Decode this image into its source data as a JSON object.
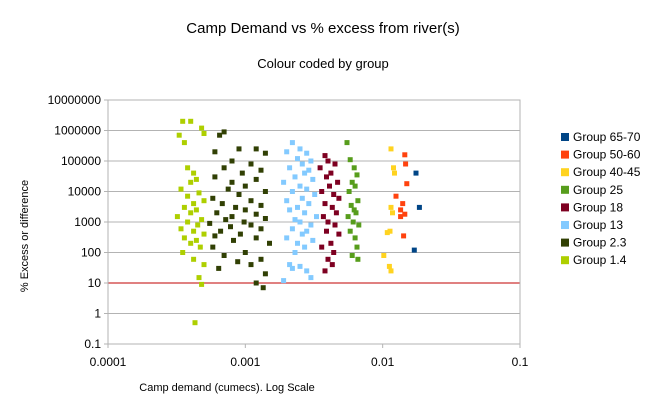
{
  "chart_data": {
    "type": "scatter",
    "title": "Camp Demand vs % excess from river(s)",
    "subtitle": "Colour coded by group",
    "xlabel": "Camp demand (cumecs). Log Scale",
    "ylabel": "% Excess or difference",
    "x_scale": "log",
    "y_scale": "log",
    "xlim": [
      0.0001,
      0.1
    ],
    "ylim": [
      0.1,
      10000000
    ],
    "x_ticks": [
      "0.0001",
      "0.001",
      "0.01",
      "0.1"
    ],
    "y_ticks": [
      "0.1",
      "1",
      "10",
      "100",
      "1000",
      "10000",
      "100000",
      "1000000",
      "10000000"
    ],
    "grid": "horizontal",
    "legend_position": "right",
    "reference_line": {
      "y": 10,
      "color": "#c00000"
    },
    "series": [
      {
        "name": "Group 65-70",
        "color": "#004586",
        "points": [
          [
            0.0175,
            40000
          ],
          [
            0.0185,
            3000
          ],
          [
            0.017,
            120
          ]
        ]
      },
      {
        "name": "Group 50-60",
        "color": "#ff420e",
        "points": [
          [
            0.0145,
            160000
          ],
          [
            0.0147,
            80000
          ],
          [
            0.015,
            18000
          ],
          [
            0.0125,
            7000
          ],
          [
            0.014,
            4000
          ],
          [
            0.0135,
            2500
          ],
          [
            0.0145,
            1800
          ],
          [
            0.0135,
            1500
          ],
          [
            0.0142,
            350
          ]
        ]
      },
      {
        "name": "Group 40-45",
        "color": "#ffd320",
        "points": [
          [
            0.0115,
            250000
          ],
          [
            0.012,
            60000
          ],
          [
            0.0122,
            40000
          ],
          [
            0.0115,
            3000
          ],
          [
            0.0118,
            2000
          ],
          [
            0.0113,
            500
          ],
          [
            0.0108,
            450
          ],
          [
            0.0102,
            80
          ],
          [
            0.0112,
            35
          ],
          [
            0.0115,
            25
          ]
        ]
      },
      {
        "name": "Group 25",
        "color": "#579d1c",
        "points": [
          [
            0.0055,
            400000
          ],
          [
            0.0058,
            110000
          ],
          [
            0.0062,
            60000
          ],
          [
            0.0065,
            35000
          ],
          [
            0.006,
            20000
          ],
          [
            0.0063,
            15000
          ],
          [
            0.0057,
            10000
          ],
          [
            0.0066,
            5000
          ],
          [
            0.0059,
            3500
          ],
          [
            0.0062,
            2500
          ],
          [
            0.0064,
            2000
          ],
          [
            0.0056,
            1500
          ],
          [
            0.0061,
            1000
          ],
          [
            0.0067,
            800
          ],
          [
            0.0058,
            500
          ],
          [
            0.0063,
            300
          ],
          [
            0.0065,
            150
          ],
          [
            0.006,
            80
          ],
          [
            0.0066,
            60
          ]
        ]
      },
      {
        "name": "Group 18",
        "color": "#7e0021",
        "points": [
          [
            0.0038,
            150000
          ],
          [
            0.004,
            100000
          ],
          [
            0.0045,
            80000
          ],
          [
            0.0035,
            60000
          ],
          [
            0.0042,
            40000
          ],
          [
            0.0039,
            30000
          ],
          [
            0.0047,
            20000
          ],
          [
            0.0041,
            15000
          ],
          [
            0.0036,
            10000
          ],
          [
            0.0044,
            8000
          ],
          [
            0.0048,
            6000
          ],
          [
            0.0038,
            4000
          ],
          [
            0.0043,
            3000
          ],
          [
            0.0046,
            2000
          ],
          [
            0.0037,
            1500
          ],
          [
            0.004,
            1000
          ],
          [
            0.0045,
            800
          ],
          [
            0.0039,
            500
          ],
          [
            0.0048,
            400
          ],
          [
            0.0042,
            200
          ],
          [
            0.0036,
            150
          ],
          [
            0.0044,
            100
          ],
          [
            0.004,
            60
          ],
          [
            0.0043,
            40
          ],
          [
            0.0038,
            25
          ]
        ]
      },
      {
        "name": "Group 13",
        "color": "#83caff",
        "points": [
          [
            0.0022,
            400000
          ],
          [
            0.0025,
            250000
          ],
          [
            0.002,
            200000
          ],
          [
            0.0028,
            180000
          ],
          [
            0.0024,
            120000
          ],
          [
            0.003,
            100000
          ],
          [
            0.0026,
            80000
          ],
          [
            0.0021,
            60000
          ],
          [
            0.0029,
            50000
          ],
          [
            0.0027,
            40000
          ],
          [
            0.0023,
            30000
          ],
          [
            0.0031,
            25000
          ],
          [
            0.0019,
            20000
          ],
          [
            0.0025,
            15000
          ],
          [
            0.0028,
            12000
          ],
          [
            0.0022,
            10000
          ],
          [
            0.0032,
            8000
          ],
          [
            0.0026,
            6000
          ],
          [
            0.002,
            5000
          ],
          [
            0.0029,
            4000
          ],
          [
            0.0024,
            3000
          ],
          [
            0.0021,
            2500
          ],
          [
            0.0027,
            2000
          ],
          [
            0.0033,
            1500
          ],
          [
            0.0023,
            1200
          ],
          [
            0.0025,
            1000
          ],
          [
            0.003,
            800
          ],
          [
            0.0022,
            600
          ],
          [
            0.0028,
            500
          ],
          [
            0.0026,
            400
          ],
          [
            0.002,
            300
          ],
          [
            0.0031,
            250
          ],
          [
            0.0024,
            200
          ],
          [
            0.0027,
            150
          ],
          [
            0.0023,
            100
          ],
          [
            0.0021,
            40
          ],
          [
            0.0025,
            35
          ],
          [
            0.0022,
            30
          ],
          [
            0.0028,
            25
          ],
          [
            0.003,
            15
          ],
          [
            0.0019,
            12
          ]
        ]
      },
      {
        "name": "Group 2.3",
        "color": "#314004",
        "points": [
          [
            0.0007,
            900000
          ],
          [
            0.00065,
            700000
          ],
          [
            0.0009,
            250000
          ],
          [
            0.0012,
            250000
          ],
          [
            0.0006,
            200000
          ],
          [
            0.0014,
            180000
          ],
          [
            0.0008,
            100000
          ],
          [
            0.0011,
            80000
          ],
          [
            0.0007,
            60000
          ],
          [
            0.0013,
            50000
          ],
          [
            0.00095,
            40000
          ],
          [
            0.0006,
            30000
          ],
          [
            0.0012,
            25000
          ],
          [
            0.0008,
            20000
          ],
          [
            0.001,
            15000
          ],
          [
            0.00075,
            12000
          ],
          [
            0.0014,
            10000
          ],
          [
            0.0009,
            8000
          ],
          [
            0.00058,
            6000
          ],
          [
            0.0011,
            5000
          ],
          [
            0.00068,
            4000
          ],
          [
            0.0013,
            3500
          ],
          [
            0.00085,
            3000
          ],
          [
            0.001,
            2500
          ],
          [
            0.00062,
            2000
          ],
          [
            0.0012,
            1800
          ],
          [
            0.0008,
            1500
          ],
          [
            0.0014,
            1300
          ],
          [
            0.00072,
            1200
          ],
          [
            0.00098,
            1000
          ],
          [
            0.00055,
            900
          ],
          [
            0.0011,
            800
          ],
          [
            0.00078,
            700
          ],
          [
            0.0013,
            600
          ],
          [
            0.00066,
            500
          ],
          [
            0.00092,
            400
          ],
          [
            0.0006,
            350
          ],
          [
            0.0012,
            300
          ],
          [
            0.00082,
            250
          ],
          [
            0.0015,
            200
          ],
          [
            0.00058,
            150
          ],
          [
            0.001,
            100
          ],
          [
            0.0007,
            80
          ],
          [
            0.0013,
            60
          ],
          [
            0.00088,
            50
          ],
          [
            0.0011,
            40
          ],
          [
            0.00064,
            30
          ],
          [
            0.0014,
            20
          ],
          [
            0.0012,
            10
          ],
          [
            0.00135,
            7
          ]
        ]
      },
      {
        "name": "Group 1.4",
        "color": "#aecf00",
        "points": [
          [
            0.00033,
            700000
          ],
          [
            0.00035,
            2000000
          ],
          [
            0.0004,
            2000000
          ],
          [
            0.00048,
            1200000
          ],
          [
            0.0005,
            800000
          ],
          [
            0.00036,
            400000
          ],
          [
            0.00038,
            60000
          ],
          [
            0.00042,
            40000
          ],
          [
            0.00044,
            25000
          ],
          [
            0.0004,
            20000
          ],
          [
            0.00034,
            12000
          ],
          [
            0.00046,
            9000
          ],
          [
            0.00038,
            7000
          ],
          [
            0.0005,
            5000
          ],
          [
            0.00042,
            4000
          ],
          [
            0.00036,
            3000
          ],
          [
            0.00044,
            2500
          ],
          [
            0.0004,
            2000
          ],
          [
            0.00032,
            1500
          ],
          [
            0.00048,
            1200
          ],
          [
            0.00038,
            1000
          ],
          [
            0.00045,
            800
          ],
          [
            0.00034,
            600
          ],
          [
            0.00042,
            500
          ],
          [
            0.0005,
            400
          ],
          [
            0.00036,
            300
          ],
          [
            0.00044,
            250
          ],
          [
            0.0004,
            200
          ],
          [
            0.00047,
            150
          ],
          [
            0.00035,
            100
          ],
          [
            0.00042,
            60
          ],
          [
            0.0005,
            40
          ],
          [
            0.00046,
            15
          ],
          [
            0.00048,
            9
          ],
          [
            0.00043,
            0.5
          ]
        ]
      }
    ]
  }
}
